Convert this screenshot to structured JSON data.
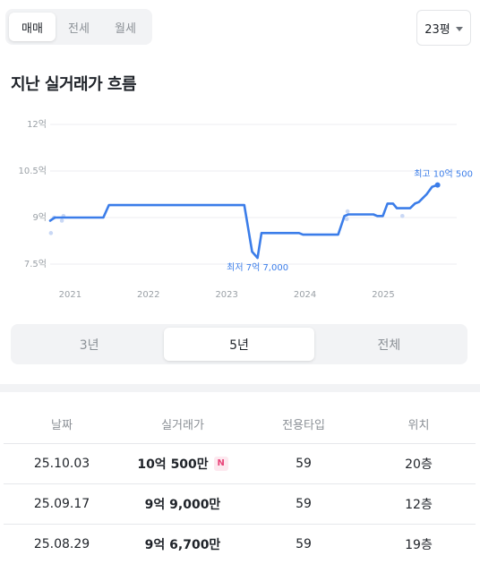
{
  "deal_type_tabs": [
    {
      "label": "매매",
      "active": true
    },
    {
      "label": "전세",
      "active": false
    },
    {
      "label": "월세",
      "active": false
    }
  ],
  "size_selector": {
    "value": "23평",
    "icon": "chevron-down-icon"
  },
  "section_title": "지난 실거래가 흐름",
  "chart_data": {
    "type": "line",
    "title": "",
    "xlabel": "",
    "ylabel": "",
    "y_unit": "억",
    "ylim": [
      7.5,
      12
    ],
    "y_ticks": [
      {
        "value": 12,
        "label": "12억"
      },
      {
        "value": 10.5,
        "label": "10.5억"
      },
      {
        "value": 9,
        "label": "9억"
      },
      {
        "value": 7.5,
        "label": "7.5억"
      }
    ],
    "x_range": [
      2020.87,
      2025.95
    ],
    "x_ticks": [
      {
        "value": 2021,
        "label": "2021"
      },
      {
        "value": 2022,
        "label": "2022"
      },
      {
        "value": 2023,
        "label": "2023"
      },
      {
        "value": 2024,
        "label": "2024"
      },
      {
        "value": 2025,
        "label": "2025"
      }
    ],
    "grid": true,
    "legend": "none",
    "line_color": "#3b7de9",
    "point_color": "#c9d8f5",
    "series": [
      {
        "values": [
          [
            2020.87,
            8.9
          ],
          [
            2020.93,
            9.0
          ],
          [
            2021.0,
            9.0
          ],
          [
            2021.55,
            9.0
          ],
          [
            2021.62,
            9.4
          ],
          [
            2023.35,
            9.4
          ],
          [
            2023.45,
            7.9
          ],
          [
            2023.52,
            7.7
          ],
          [
            2023.57,
            8.5
          ],
          [
            2024.05,
            8.5
          ],
          [
            2024.1,
            8.45
          ],
          [
            2024.55,
            8.45
          ],
          [
            2024.63,
            9.05
          ],
          [
            2024.68,
            9.1
          ],
          [
            2025.0,
            9.1
          ],
          [
            2025.05,
            9.05
          ],
          [
            2025.12,
            9.05
          ],
          [
            2025.18,
            9.45
          ],
          [
            2025.25,
            9.45
          ],
          [
            2025.3,
            9.3
          ],
          [
            2025.47,
            9.3
          ],
          [
            2025.53,
            9.45
          ],
          [
            2025.58,
            9.5
          ],
          [
            2025.68,
            9.75
          ],
          [
            2025.75,
            9.99
          ],
          [
            2025.82,
            10.05
          ]
        ]
      }
    ],
    "transactions": [
      [
        2020.88,
        8.5
      ],
      [
        2020.92,
        9.0
      ],
      [
        2021.02,
        8.9
      ],
      [
        2021.04,
        9.05
      ],
      [
        2024.66,
        8.95
      ],
      [
        2024.67,
        9.2
      ],
      [
        2025.37,
        9.05
      ],
      [
        2025.82,
        10.05
      ]
    ],
    "annotations": [
      {
        "text": "최고 10억 500",
        "x": 2025.82,
        "y": 10.05,
        "placement": "above"
      },
      {
        "text": "최저 7억 7,000",
        "x": 2023.52,
        "y": 7.7,
        "placement": "below"
      }
    ]
  },
  "period_tabs": [
    {
      "label": "3년",
      "active": false
    },
    {
      "label": "5년",
      "active": true
    },
    {
      "label": "전체",
      "active": false
    }
  ],
  "table": {
    "headers": [
      "날짜",
      "실거래가",
      "전용타입",
      "위치"
    ],
    "rows": [
      {
        "date": "25.10.03",
        "price": "10억 500만",
        "badge": "N",
        "type": "59",
        "floor": "20층"
      },
      {
        "date": "25.09.17",
        "price": "9억 9,000만",
        "badge": "",
        "type": "59",
        "floor": "12층"
      },
      {
        "date": "25.08.29",
        "price": "9억 6,700만",
        "badge": "",
        "type": "59",
        "floor": "19층"
      }
    ]
  }
}
